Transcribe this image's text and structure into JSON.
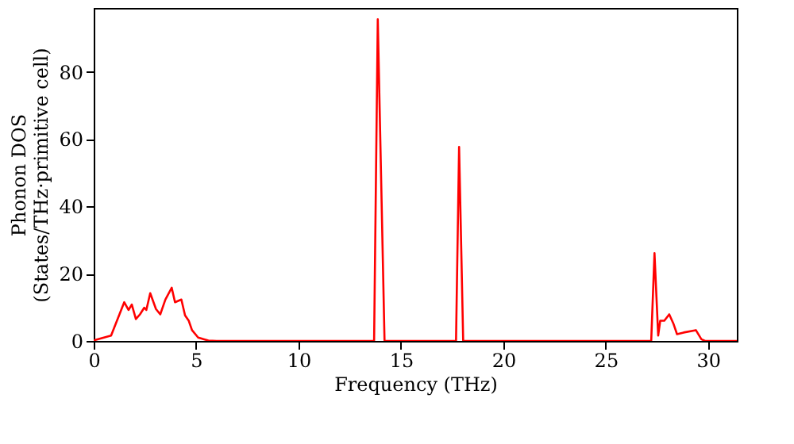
{
  "chart_data": {
    "type": "line",
    "xlabel": "Frequency (THz)",
    "ylabel": "Phonon DOS\n(States/THz·primitive cell)",
    "xlim": [
      0,
      31.4
    ],
    "ylim": [
      0,
      99
    ],
    "xticks": [
      0,
      5,
      10,
      15,
      20,
      25,
      30
    ],
    "yticks": [
      0,
      20,
      40,
      60,
      80
    ],
    "grid": false,
    "legend": false,
    "marker": "none",
    "line_style": "solid",
    "series": [
      {
        "color": "#ff0000",
        "x": [
          0,
          0.08,
          0.85,
          1.49,
          1.7,
          1.86,
          2.06,
          2.26,
          2.47,
          2.57,
          2.76,
          3.04,
          3.25,
          3.5,
          3.81,
          3.97,
          4.28,
          4.46,
          4.64,
          4.8,
          5.1,
          5.6,
          6.0,
          13.69,
          13.87,
          14.2,
          17.69,
          17.84,
          18.04,
          27.22,
          27.38,
          27.56,
          27.66,
          27.86,
          28.1,
          28.3,
          28.48,
          28.8,
          29.4,
          29.67,
          29.85,
          31.4
        ],
        "values": [
          0,
          0.3,
          1.6,
          11.5,
          9.2,
          10.8,
          6.5,
          7.9,
          9.9,
          9.2,
          14.2,
          9.5,
          7.9,
          12.3,
          15.8,
          11.5,
          12.3,
          7.6,
          6,
          3.2,
          1,
          0.1,
          0,
          0,
          95.6,
          0,
          0,
          57.7,
          0,
          0,
          26.1,
          1.6,
          6,
          6,
          7.9,
          5.2,
          2,
          2.5,
          3.2,
          0.5,
          0,
          0
        ]
      }
    ]
  }
}
